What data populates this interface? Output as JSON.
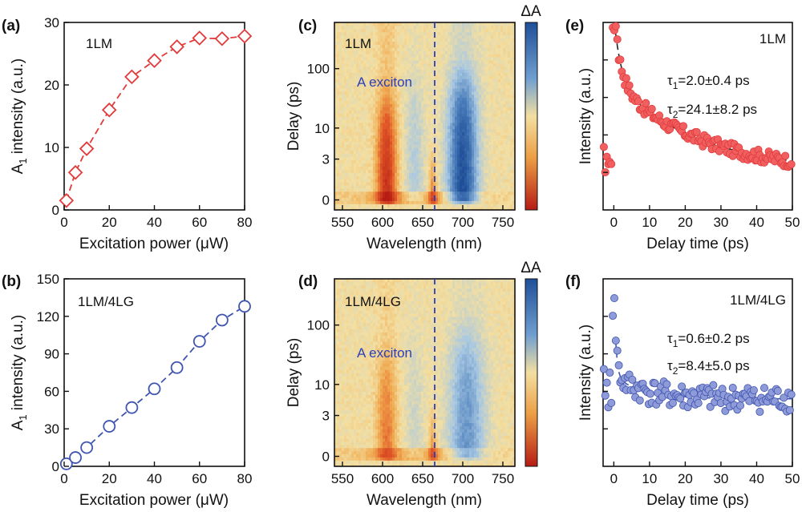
{
  "colors": {
    "red": "#e23a3a",
    "blue": "#3f55b0",
    "marker_red_fill": "#f06060",
    "marker_blue_fill": "#8f9bd8",
    "heatmap_positive": "#1f5fa8",
    "heatmap_negative": "#c02818",
    "heatmap_zero": "#f3dfa2"
  },
  "chart_data": [
    {
      "panel": "(a)",
      "type": "line",
      "inset_label": "1LM",
      "xlabel": "Excitation power (μW)",
      "ylabel_main": "A",
      "ylabel_sub": "1",
      "ylabel_rest": " intensity (a.u.)",
      "xlim": [
        0,
        80
      ],
      "ylim": [
        0,
        30
      ],
      "xticks": [
        "0",
        "20",
        "40",
        "60",
        "80"
      ],
      "yticks": [
        "0",
        "10",
        "20",
        "30"
      ],
      "marker": "diamond",
      "color": "red",
      "x": [
        1,
        5,
        10,
        20,
        30,
        40,
        50,
        60,
        70,
        80
      ],
      "y": [
        1.5,
        6.0,
        9.8,
        16.0,
        21.3,
        23.9,
        26.1,
        27.5,
        27.4,
        27.8
      ]
    },
    {
      "panel": "(b)",
      "type": "line",
      "inset_label": "1LM/4LG",
      "xlabel": "Excitation power (μW)",
      "ylabel_main": "A",
      "ylabel_sub": "1",
      "ylabel_rest": " intensity (a.u.)",
      "xlim": [
        0,
        80
      ],
      "ylim": [
        0,
        150
      ],
      "xticks": [
        "0",
        "20",
        "40",
        "60",
        "80"
      ],
      "yticks": [
        "0",
        "30",
        "60",
        "90",
        "120",
        "150"
      ],
      "marker": "circle",
      "color": "blue",
      "x": [
        1,
        5,
        10,
        20,
        30,
        40,
        50,
        60,
        70,
        80
      ],
      "y": [
        2,
        7,
        15,
        32,
        47,
        62,
        79,
        100,
        117,
        128
      ]
    },
    {
      "panel": "(c)",
      "type": "heatmap",
      "inset_label": "1LM",
      "annotation": "A exciton",
      "colorbar_label": "ΔA",
      "xlabel": "Wavelength (nm)",
      "ylabel": "Delay (ps)",
      "xlim": [
        540,
        765
      ],
      "xticks": [
        "550",
        "600",
        "650",
        "700",
        "750"
      ],
      "yticks": [
        "0",
        "3",
        "10",
        "100"
      ],
      "dashed_line_x": 665,
      "features": [
        {
          "center_nm": 605,
          "sign": "negative",
          "strength": 0.85
        },
        {
          "center_nm": 640,
          "sign": "positive",
          "strength": 0.25
        },
        {
          "center_nm": 663,
          "sign": "negative",
          "strength": 0.6
        },
        {
          "center_nm": 700,
          "sign": "positive",
          "strength": 1.0
        }
      ]
    },
    {
      "panel": "(d)",
      "type": "heatmap",
      "inset_label": "1LM/4LG",
      "annotation": "A exciton",
      "colorbar_label": "ΔA",
      "xlabel": "Wavelength (nm)",
      "ylabel": "Delay (ps)",
      "xlim": [
        540,
        765
      ],
      "xticks": [
        "550",
        "600",
        "650",
        "700",
        "750"
      ],
      "yticks": [
        "0",
        "3",
        "10",
        "100"
      ],
      "dashed_line_x": 665,
      "features": [
        {
          "center_nm": 605,
          "sign": "negative",
          "strength": 0.45
        },
        {
          "center_nm": 640,
          "sign": "positive",
          "strength": 0.15
        },
        {
          "center_nm": 663,
          "sign": "negative",
          "strength": 0.5
        },
        {
          "center_nm": 705,
          "sign": "positive",
          "strength": 0.55
        }
      ]
    },
    {
      "panel": "(e)",
      "type": "scatter",
      "inset_label": "1LM",
      "tau1_sym": "τ",
      "tau1_sub": "1",
      "tau1_val": "=2.0±0.4 ps",
      "tau2_sym": "τ",
      "tau2_sub": "2",
      "tau2_val": "=24.1±8.2 ps",
      "xlabel": "Delay time (ps)",
      "ylabel": "Intensity (a.u.)",
      "xlim": [
        -3,
        50
      ],
      "ylim": [
        0,
        1
      ],
      "xticks": [
        "0",
        "10",
        "20",
        "30",
        "40",
        "50"
      ],
      "color": "red",
      "fit": {
        "A1": 0.35,
        "tau1": 2.0,
        "A2": 0.48,
        "tau2": 24.1,
        "offset": 0.2
      }
    },
    {
      "panel": "(f)",
      "type": "scatter",
      "inset_label": "1LM/4LG",
      "tau1_sym": "τ",
      "tau1_sub": "1",
      "tau1_val": "=0.6±0.2 ps",
      "tau2_sym": "τ",
      "tau2_sub": "2",
      "tau2_val": "=8.4±5.0 ps",
      "xlabel": "Delay time (ps)",
      "ylabel": "Intensity (a.u.)",
      "xlim": [
        -3,
        50
      ],
      "ylim": [
        0,
        1
      ],
      "xticks": [
        "0",
        "10",
        "20",
        "30",
        "40",
        "50"
      ],
      "color": "blue",
      "fit": {
        "A1": 0.45,
        "tau1": 0.6,
        "A2": 0.12,
        "tau2": 8.4,
        "offset": 0.36
      }
    }
  ]
}
